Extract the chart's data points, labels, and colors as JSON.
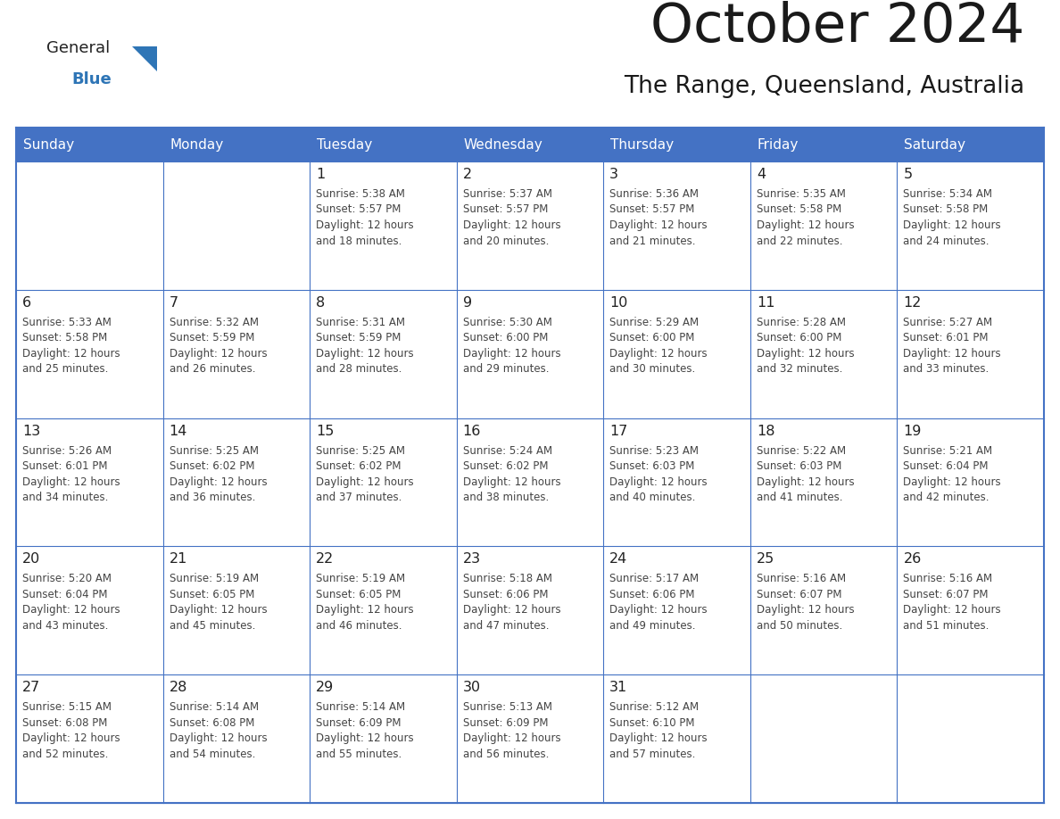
{
  "title": "October 2024",
  "subtitle": "The Range, Queensland, Australia",
  "header_color": "#4472C4",
  "header_text_color": "#FFFFFF",
  "border_color": "#4472C4",
  "days_of_week": [
    "Sunday",
    "Monday",
    "Tuesday",
    "Wednesday",
    "Thursday",
    "Friday",
    "Saturday"
  ],
  "calendar_data": [
    [
      {
        "day": "",
        "sunrise": "",
        "sunset": "",
        "daylight": ""
      },
      {
        "day": "",
        "sunrise": "",
        "sunset": "",
        "daylight": ""
      },
      {
        "day": "1",
        "sunrise": "5:38 AM",
        "sunset": "5:57 PM",
        "daylight": "and 18 minutes."
      },
      {
        "day": "2",
        "sunrise": "5:37 AM",
        "sunset": "5:57 PM",
        "daylight": "and 20 minutes."
      },
      {
        "day": "3",
        "sunrise": "5:36 AM",
        "sunset": "5:57 PM",
        "daylight": "and 21 minutes."
      },
      {
        "day": "4",
        "sunrise": "5:35 AM",
        "sunset": "5:58 PM",
        "daylight": "and 22 minutes."
      },
      {
        "day": "5",
        "sunrise": "5:34 AM",
        "sunset": "5:58 PM",
        "daylight": "and 24 minutes."
      }
    ],
    [
      {
        "day": "6",
        "sunrise": "5:33 AM",
        "sunset": "5:58 PM",
        "daylight": "and 25 minutes."
      },
      {
        "day": "7",
        "sunrise": "5:32 AM",
        "sunset": "5:59 PM",
        "daylight": "and 26 minutes."
      },
      {
        "day": "8",
        "sunrise": "5:31 AM",
        "sunset": "5:59 PM",
        "daylight": "and 28 minutes."
      },
      {
        "day": "9",
        "sunrise": "5:30 AM",
        "sunset": "6:00 PM",
        "daylight": "and 29 minutes."
      },
      {
        "day": "10",
        "sunrise": "5:29 AM",
        "sunset": "6:00 PM",
        "daylight": "and 30 minutes."
      },
      {
        "day": "11",
        "sunrise": "5:28 AM",
        "sunset": "6:00 PM",
        "daylight": "and 32 minutes."
      },
      {
        "day": "12",
        "sunrise": "5:27 AM",
        "sunset": "6:01 PM",
        "daylight": "and 33 minutes."
      }
    ],
    [
      {
        "day": "13",
        "sunrise": "5:26 AM",
        "sunset": "6:01 PM",
        "daylight": "and 34 minutes."
      },
      {
        "day": "14",
        "sunrise": "5:25 AM",
        "sunset": "6:02 PM",
        "daylight": "and 36 minutes."
      },
      {
        "day": "15",
        "sunrise": "5:25 AM",
        "sunset": "6:02 PM",
        "daylight": "and 37 minutes."
      },
      {
        "day": "16",
        "sunrise": "5:24 AM",
        "sunset": "6:02 PM",
        "daylight": "and 38 minutes."
      },
      {
        "day": "17",
        "sunrise": "5:23 AM",
        "sunset": "6:03 PM",
        "daylight": "and 40 minutes."
      },
      {
        "day": "18",
        "sunrise": "5:22 AM",
        "sunset": "6:03 PM",
        "daylight": "and 41 minutes."
      },
      {
        "day": "19",
        "sunrise": "5:21 AM",
        "sunset": "6:04 PM",
        "daylight": "and 42 minutes."
      }
    ],
    [
      {
        "day": "20",
        "sunrise": "5:20 AM",
        "sunset": "6:04 PM",
        "daylight": "and 43 minutes."
      },
      {
        "day": "21",
        "sunrise": "5:19 AM",
        "sunset": "6:05 PM",
        "daylight": "and 45 minutes."
      },
      {
        "day": "22",
        "sunrise": "5:19 AM",
        "sunset": "6:05 PM",
        "daylight": "and 46 minutes."
      },
      {
        "day": "23",
        "sunrise": "5:18 AM",
        "sunset": "6:06 PM",
        "daylight": "and 47 minutes."
      },
      {
        "day": "24",
        "sunrise": "5:17 AM",
        "sunset": "6:06 PM",
        "daylight": "and 49 minutes."
      },
      {
        "day": "25",
        "sunrise": "5:16 AM",
        "sunset": "6:07 PM",
        "daylight": "and 50 minutes."
      },
      {
        "day": "26",
        "sunrise": "5:16 AM",
        "sunset": "6:07 PM",
        "daylight": "and 51 minutes."
      }
    ],
    [
      {
        "day": "27",
        "sunrise": "5:15 AM",
        "sunset": "6:08 PM",
        "daylight": "and 52 minutes."
      },
      {
        "day": "28",
        "sunrise": "5:14 AM",
        "sunset": "6:08 PM",
        "daylight": "and 54 minutes."
      },
      {
        "day": "29",
        "sunrise": "5:14 AM",
        "sunset": "6:09 PM",
        "daylight": "and 55 minutes."
      },
      {
        "day": "30",
        "sunrise": "5:13 AM",
        "sunset": "6:09 PM",
        "daylight": "and 56 minutes."
      },
      {
        "day": "31",
        "sunrise": "5:12 AM",
        "sunset": "6:10 PM",
        "daylight": "and 57 minutes."
      },
      {
        "day": "",
        "sunrise": "",
        "sunset": "",
        "daylight": ""
      },
      {
        "day": "",
        "sunrise": "",
        "sunset": "",
        "daylight": ""
      }
    ]
  ]
}
